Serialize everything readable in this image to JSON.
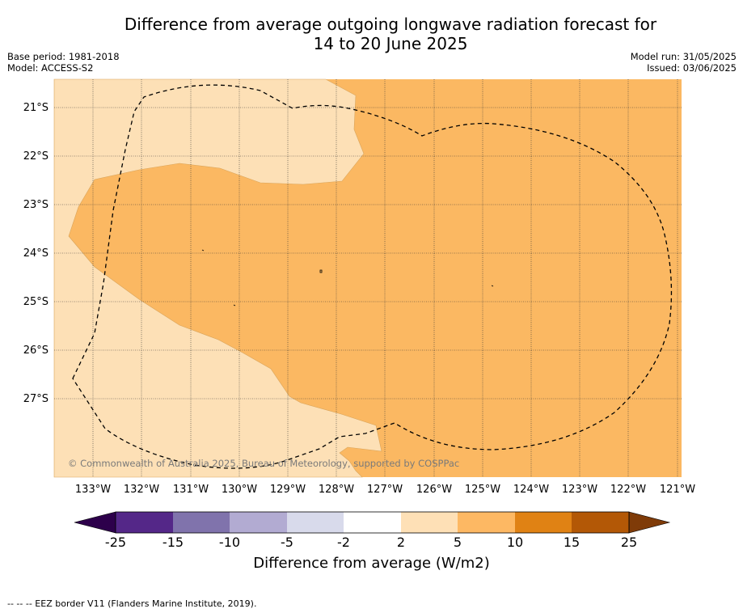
{
  "title": {
    "line1": "Difference from average outgoing longwave radiation forecast for",
    "line2": "14 to 20 June 2025"
  },
  "header_left": {
    "base_period": "Base period: 1981-2018",
    "model": "Model: ACCESS-S2"
  },
  "header_right": {
    "model_run": "Model run: 31/05/2025",
    "issued": "Issued: 03/06/2025"
  },
  "map": {
    "lat_labels": [
      "21°S",
      "22°S",
      "23°S",
      "24°S",
      "25°S",
      "26°S",
      "27°S"
    ],
    "lon_labels": [
      "133°W",
      "132°W",
      "131°W",
      "130°W",
      "129°W",
      "128°W",
      "127°W",
      "126°W",
      "125°W",
      "124°W",
      "123°W",
      "122°W",
      "121°W"
    ],
    "copyright": "© Commonwealth of Australia 2025, Bureau of Meteorology, supported by COSPPac",
    "colors": {
      "class_2_5": "#fde0b6",
      "class_5_10": "#fbb862",
      "grid": "#222222",
      "eez_border": "#000000"
    }
  },
  "colorbar": {
    "ticks": [
      "-25",
      "-15",
      "-10",
      "-5",
      "-2",
      "2",
      "5",
      "10",
      "15",
      "25"
    ],
    "colors": [
      "#2d004b",
      "#542788",
      "#8073ac",
      "#b2abd2",
      "#d8daeb",
      "#ffffff",
      "#fee0b6",
      "#fdb863",
      "#e08214",
      "#b35806",
      "#7f3b08"
    ],
    "label": "Difference from average (W/m2)"
  },
  "footnote": "--  --  -- EEZ border V11 (Flanders Marine Institute, 2019)."
}
